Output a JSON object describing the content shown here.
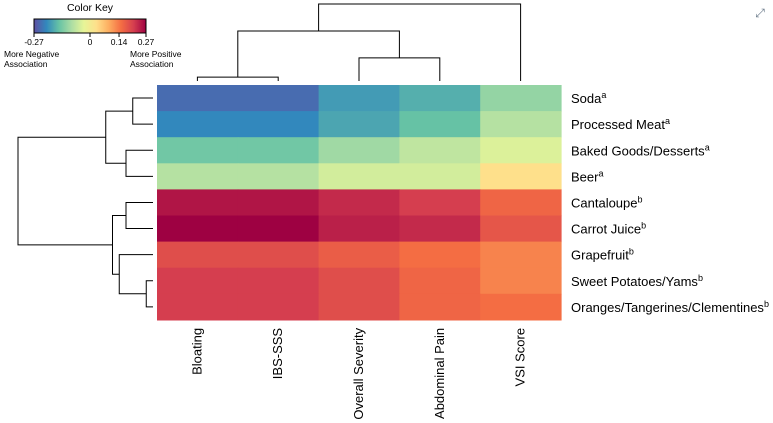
{
  "chart_data": {
    "type": "heatmap",
    "title": "",
    "columns": [
      "Bloating",
      "IBS-SSS",
      "Overall Severity",
      "Abdominal Pain",
      "VSI Score"
    ],
    "rows": [
      {
        "label": "Soda",
        "sup": "a"
      },
      {
        "label": "Processed Meat",
        "sup": "a"
      },
      {
        "label": "Baked Goods/Desserts",
        "sup": "a"
      },
      {
        "label": "Beer",
        "sup": "a"
      },
      {
        "label": "Cantaloupe",
        "sup": "b"
      },
      {
        "label": "Carrot Juice",
        "sup": "b"
      },
      {
        "label": "Grapefruit",
        "sup": "b"
      },
      {
        "label": "Sweet Potatoes/Yams",
        "sup": "b"
      },
      {
        "label": "Oranges/Tangerines/Clementines",
        "sup": "b"
      }
    ],
    "values": [
      [
        -0.24,
        -0.24,
        -0.19,
        -0.17,
        -0.11
      ],
      [
        -0.21,
        -0.21,
        -0.18,
        -0.15,
        -0.08
      ],
      [
        -0.14,
        -0.14,
        -0.1,
        -0.07,
        -0.04
      ],
      [
        -0.08,
        -0.08,
        -0.05,
        -0.05,
        0.03
      ],
      [
        0.25,
        0.25,
        0.23,
        0.21,
        0.16
      ],
      [
        0.27,
        0.27,
        0.24,
        0.23,
        0.18
      ],
      [
        0.19,
        0.19,
        0.17,
        0.15,
        0.13
      ],
      [
        0.21,
        0.21,
        0.19,
        0.16,
        0.13
      ],
      [
        0.21,
        0.21,
        0.19,
        0.16,
        0.15
      ]
    ],
    "color_key": {
      "title": "Color Key",
      "range": [
        -0.27,
        0.27
      ],
      "ticks": [
        -0.27,
        0,
        0.14,
        0.27
      ],
      "tick_labels": [
        "-0.27",
        "0",
        "0.14",
        "0.27"
      ],
      "low_label_line1": "More Negative",
      "low_label_line2": "Association",
      "high_label_line1": "More Positive",
      "high_label_line2": "Association"
    },
    "colormap": [
      "#5e4fa2",
      "#3288bd",
      "#66c2a5",
      "#abdda4",
      "#e6f598",
      "#fee08b",
      "#fdae61",
      "#f46d43",
      "#d53e4f",
      "#9e0142"
    ],
    "row_dendrogram": {
      "leaf_order": [
        0,
        1,
        2,
        3,
        4,
        5,
        6,
        7,
        8
      ],
      "merges": [
        [
          0,
          1,
          0.15
        ],
        [
          2,
          3,
          0.2
        ],
        [
          9,
          10,
          0.35
        ],
        [
          4,
          5,
          0.2
        ],
        [
          7,
          8,
          0.05
        ],
        [
          6,
          13,
          0.25
        ],
        [
          12,
          14,
          0.3
        ],
        [
          11,
          15,
          1.0
        ]
      ]
    },
    "col_dendrogram": {
      "leaf_order": [
        0,
        1,
        2,
        3,
        4
      ],
      "merges": [
        [
          0,
          1,
          0.05
        ],
        [
          2,
          3,
          0.3
        ],
        [
          5,
          6,
          0.65
        ],
        [
          7,
          4,
          1.0
        ]
      ]
    }
  },
  "ui": {
    "expand_icon": "expand-icon"
  }
}
